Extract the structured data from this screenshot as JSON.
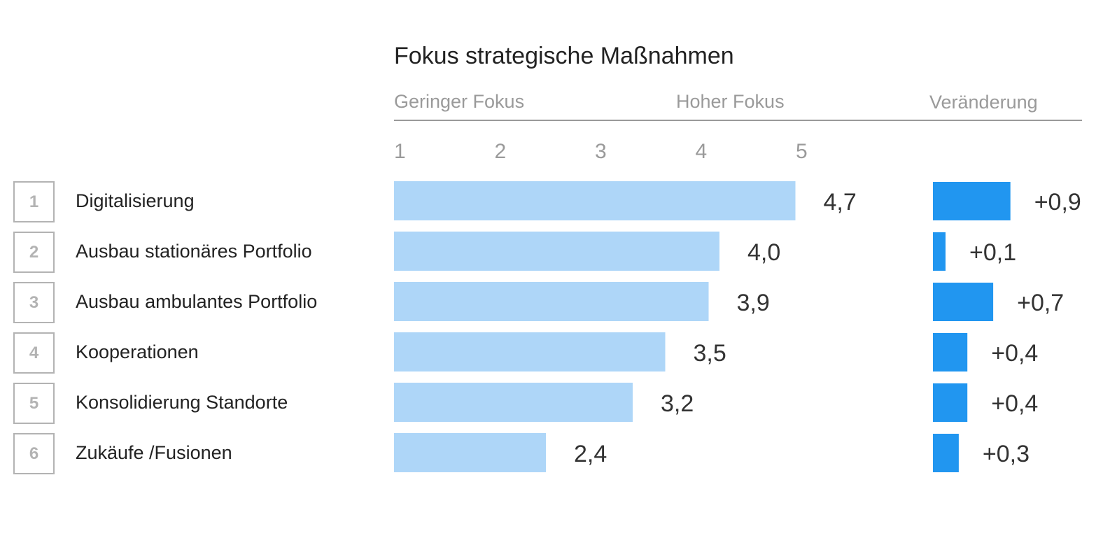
{
  "chart_data": {
    "type": "bar",
    "title": "Fokus strategische Maßnahmen",
    "headers": {
      "low": "Geringer Fokus",
      "high": "Hoher Fokus",
      "change": "Veränderung"
    },
    "ticks": [
      "1",
      "2",
      "3",
      "4",
      "5"
    ],
    "xlim": [
      1,
      5
    ],
    "categories": [
      "Digitalisierung",
      "Ausbau stationäres Portfolio",
      "Ausbau ambulantes Portfolio",
      "Kooperationen",
      "Konsolidierung Standorte",
      "Zukäufe /Fusionen"
    ],
    "ranks": [
      "1",
      "2",
      "3",
      "4",
      "5",
      "6"
    ],
    "series": [
      {
        "values": [
          4.7,
          4.0,
          3.9,
          3.5,
          3.2,
          2.4
        ],
        "labels": [
          "4,7",
          "4,0",
          "3,9",
          "3,5",
          "3,2",
          "2,4"
        ]
      },
      {
        "values": [
          0.9,
          0.1,
          0.7,
          0.4,
          0.4,
          0.3
        ],
        "labels": [
          "+0,9",
          "+0,1",
          "+0,7",
          "+0,4",
          "+0,4",
          "+0,3"
        ]
      }
    ],
    "colors": {
      "focus_bar": "#aed6f8",
      "change_bar": "#2196f0",
      "rule": "#9a9a9a",
      "rank_box": "#b3b3b3"
    }
  }
}
